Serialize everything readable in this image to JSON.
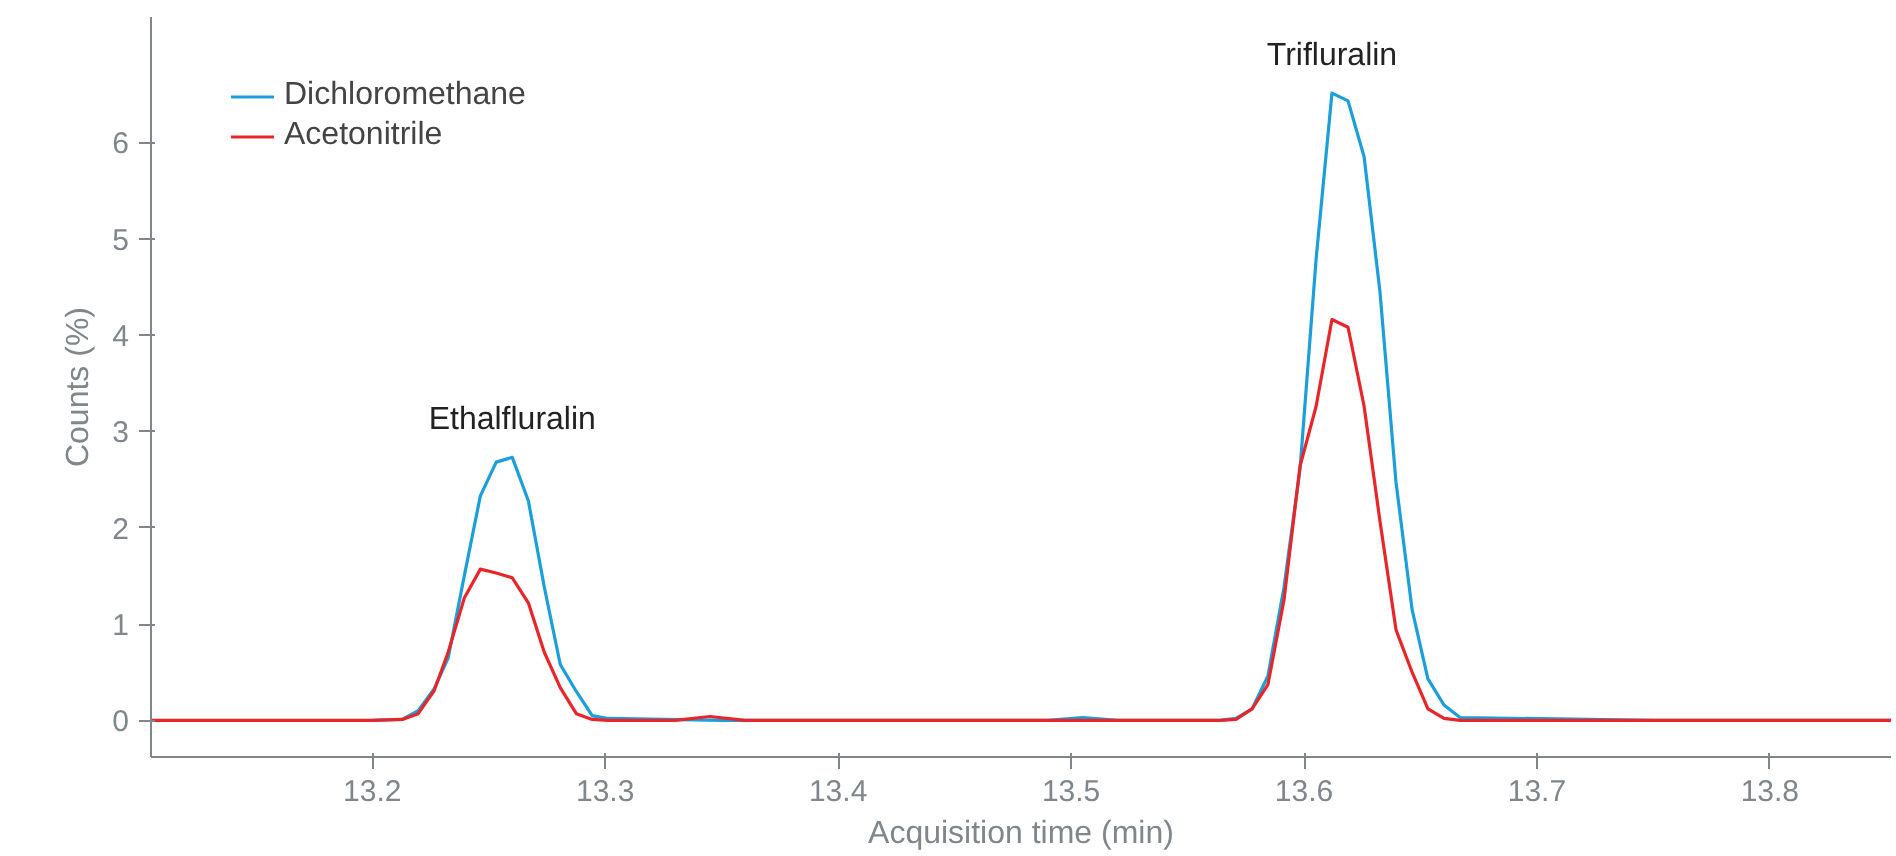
{
  "chart_data": {
    "type": "line",
    "xlabel": "Acquisition time (min)",
    "ylabel": "Counts (%)",
    "xlim": [
      13.105,
      13.852
    ],
    "ylim": [
      -0.38,
      7.3
    ],
    "xticks": [
      13.2,
      13.3,
      13.4,
      13.5,
      13.6,
      13.7,
      13.8
    ],
    "yticks": [
      0,
      1,
      2,
      3,
      4,
      5,
      6
    ],
    "grid": false,
    "legend": "top left",
    "marker": "none",
    "line_style": "solid",
    "annotations": [
      {
        "text": "Ethalfluralin",
        "x": 13.2601,
        "y": 2.73
      },
      {
        "text": "Trifluralin",
        "x": 13.612,
        "y": 6.51
      }
    ],
    "series": [
      {
        "name": "Dichloromethane",
        "color": "#1a9fdc",
        "x": [
          13.2,
          13.2129,
          13.2197,
          13.2266,
          13.2326,
          13.2395,
          13.2464,
          13.2532,
          13.2601,
          13.267,
          13.2738,
          13.2807,
          13.2876,
          13.2944,
          13.3013,
          13.35,
          13.45,
          13.49,
          13.505,
          13.52,
          13.5639,
          13.5708,
          13.5777,
          13.5845,
          13.5914,
          13.5983,
          13.6052,
          13.612,
          13.6189,
          13.6258,
          13.6326,
          13.6395,
          13.6464,
          13.6532,
          13.6601,
          13.667,
          13.75,
          13.852
        ],
        "values": [
          0,
          0.01,
          0.1,
          0.33,
          0.65,
          1.5,
          2.33,
          2.68,
          2.73,
          2.28,
          1.39,
          0.58,
          0.3,
          0.05,
          0.02,
          0,
          0,
          0,
          0.03,
          0,
          0,
          0.02,
          0.12,
          0.46,
          1.38,
          2.61,
          4.79,
          6.51,
          6.43,
          5.85,
          4.45,
          2.47,
          1.15,
          0.43,
          0.16,
          0.03,
          0,
          0
        ]
      },
      {
        "name": "Acetonitrile",
        "color": "#e8262a",
        "x": [
          13.105,
          13.15,
          13.2,
          13.2129,
          13.2197,
          13.2266,
          13.2326,
          13.2395,
          13.2464,
          13.2532,
          13.2601,
          13.267,
          13.2738,
          13.2807,
          13.2876,
          13.2944,
          13.3013,
          13.33,
          13.345,
          13.36,
          13.45,
          13.5639,
          13.5708,
          13.5777,
          13.5845,
          13.5914,
          13.5983,
          13.6052,
          13.612,
          13.6189,
          13.6258,
          13.6326,
          13.6395,
          13.6464,
          13.6532,
          13.6601,
          13.667,
          13.75,
          13.852
        ],
        "values": [
          0,
          0,
          0,
          0.01,
          0.07,
          0.31,
          0.71,
          1.27,
          1.57,
          1.53,
          1.48,
          1.22,
          0.71,
          0.34,
          0.07,
          0.01,
          0,
          0,
          0.04,
          0,
          0,
          0,
          0.01,
          0.12,
          0.37,
          1.25,
          2.64,
          3.26,
          4.16,
          4.08,
          3.26,
          2.07,
          0.94,
          0.5,
          0.12,
          0.02,
          0,
          0,
          0
        ]
      }
    ]
  }
}
